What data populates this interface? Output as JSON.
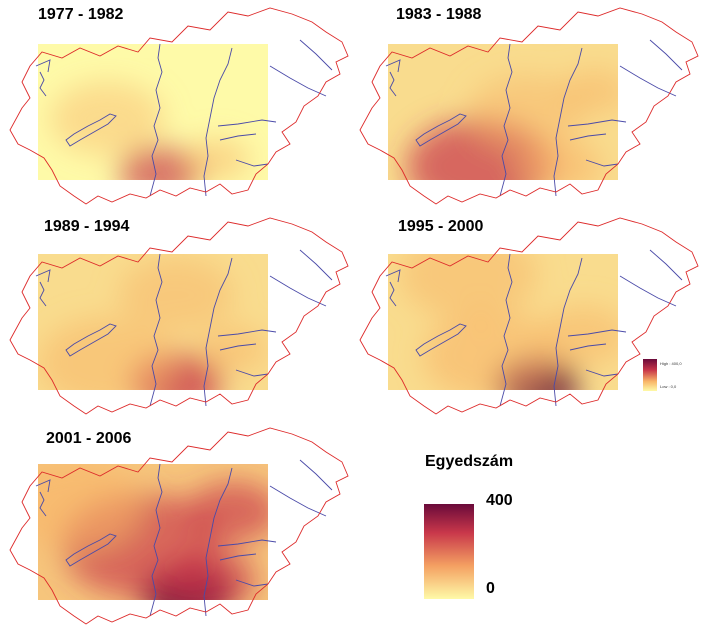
{
  "panels": [
    {
      "title": "1977 - 1982",
      "hotspots": [
        [
          0.53,
          0.95,
          0.18,
          0.55
        ],
        [
          0.78,
          0.85,
          0.14,
          0.3
        ],
        [
          0.3,
          0.55,
          0.25,
          0.15
        ]
      ]
    },
    {
      "title": "1983 - 1988",
      "hotspots": [
        [
          0.4,
          0.9,
          0.32,
          0.6
        ],
        [
          0.75,
          0.9,
          0.18,
          0.45
        ],
        [
          0.9,
          0.35,
          0.15,
          0.35
        ],
        [
          0.6,
          0.5,
          0.25,
          0.25
        ]
      ]
    },
    {
      "title": "1989 - 1994",
      "hotspots": [
        [
          0.6,
          0.95,
          0.2,
          0.7
        ],
        [
          0.3,
          0.8,
          0.3,
          0.35
        ],
        [
          0.85,
          0.7,
          0.15,
          0.35
        ],
        [
          0.6,
          0.3,
          0.25,
          0.25
        ]
      ]
    },
    {
      "title": "1995 - 2000",
      "hotspots": [
        [
          0.65,
          0.97,
          0.18,
          0.95
        ],
        [
          0.45,
          0.75,
          0.3,
          0.4
        ],
        [
          0.85,
          0.6,
          0.2,
          0.35
        ],
        [
          0.35,
          0.15,
          0.3,
          0.3
        ]
      ]
    },
    {
      "title": "2001 - 2006",
      "hotspots": [
        [
          0.65,
          0.97,
          0.2,
          1.0
        ],
        [
          0.45,
          0.6,
          0.35,
          0.5
        ],
        [
          0.15,
          0.3,
          0.3,
          0.45
        ],
        [
          0.85,
          0.35,
          0.2,
          0.5
        ],
        [
          0.75,
          0.85,
          0.2,
          0.55
        ]
      ]
    }
  ],
  "legend": {
    "title": "Egyedszám",
    "max_label": "400",
    "min_label": "0"
  },
  "mini_legend": {
    "high_label": "High : 400,0",
    "low_label": "Low : 0,0"
  },
  "colors": {
    "low": "#fefaa8",
    "mid": "#f8b568",
    "high": "#c8374a",
    "max": "#6a0a3a",
    "border": "#dd2a2a",
    "river": "#4a4aa8"
  }
}
